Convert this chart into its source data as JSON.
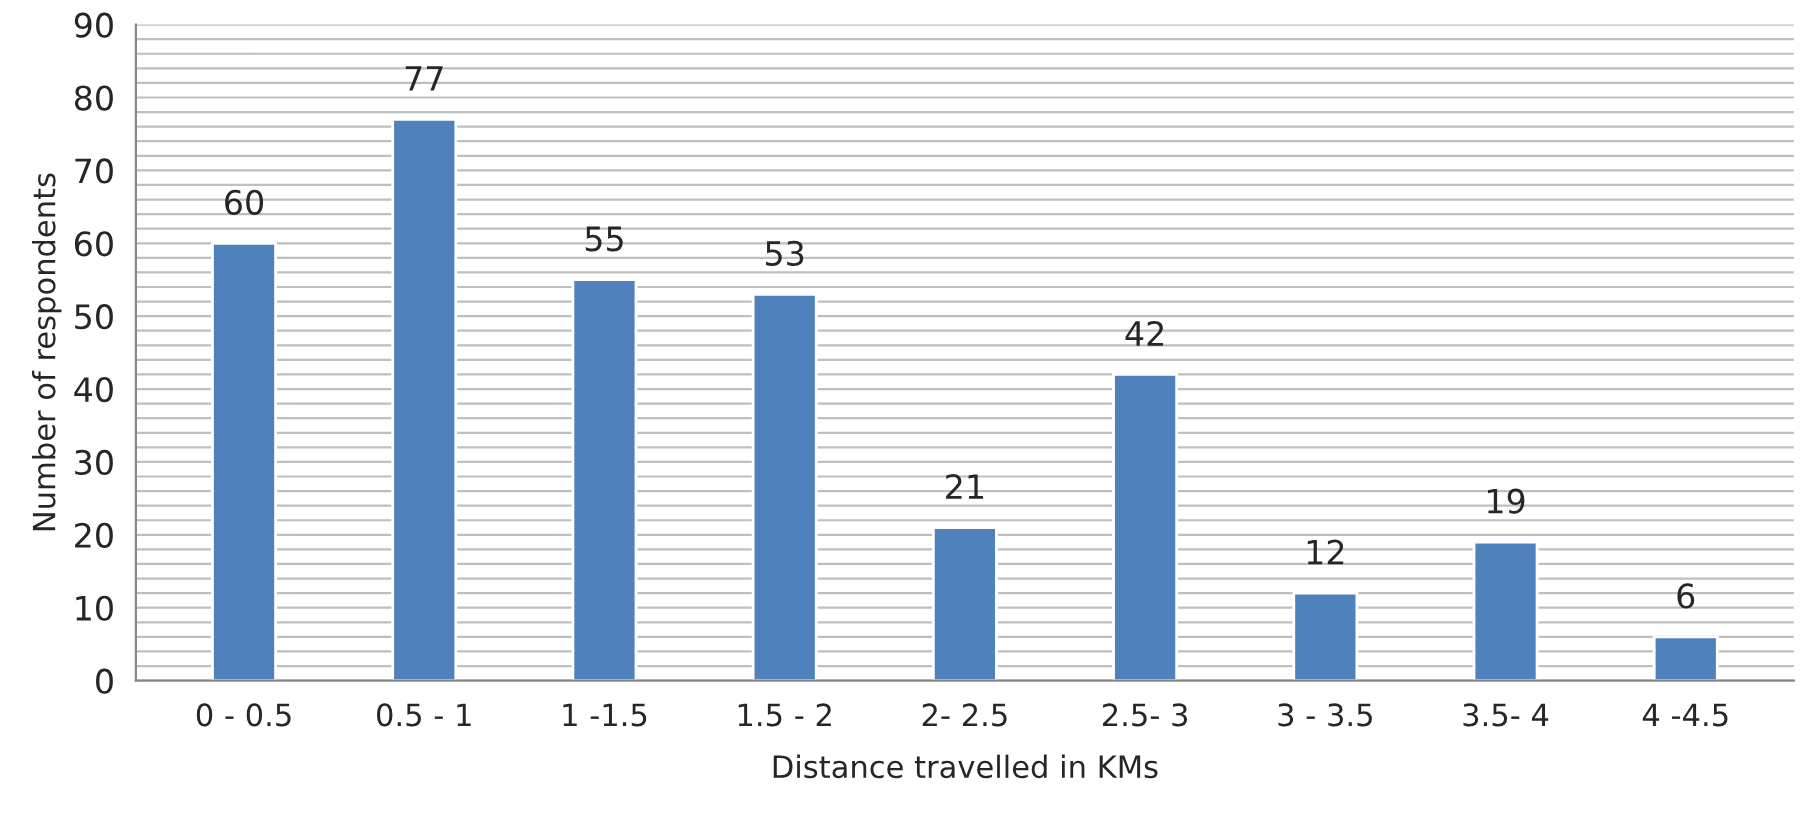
{
  "chart_data": {
    "type": "bar",
    "xlabel": "Distance travelled in KMs",
    "ylabel": "Number of respondents",
    "categories": [
      "0 - 0.5",
      "0.5 - 1",
      "1 -1.5",
      "1.5 - 2",
      "2- 2.5",
      "2.5- 3",
      "3 - 3.5",
      "3.5- 4",
      "4 -4.5"
    ],
    "values": [
      60,
      77,
      55,
      53,
      21,
      42,
      12,
      19,
      6
    ],
    "color": "#4f81bd",
    "data_labels": true,
    "grid": "y",
    "legend": false,
    "ylim": [
      0,
      90
    ],
    "yticks": [
      0,
      {
        "value": 2,
        "label": null
      },
      {
        "value": 4,
        "label": null
      },
      {
        "value": 6,
        "label": null
      },
      {
        "value": 8,
        "label": null
      },
      10,
      {
        "value": 12,
        "label": null
      },
      {
        "value": 14,
        "label": null
      },
      {
        "value": 16,
        "label": null
      },
      {
        "value": 18,
        "label": null
      },
      20,
      {
        "value": 22,
        "label": null
      },
      {
        "value": 24,
        "label": null
      },
      {
        "value": 26,
        "label": null
      },
      {
        "value": 28,
        "label": null
      },
      30,
      {
        "value": 32,
        "label": null
      },
      {
        "value": 34,
        "label": null
      },
      {
        "value": 36,
        "label": null
      },
      {
        "value": 38,
        "label": null
      },
      40,
      {
        "value": 42,
        "label": null
      },
      {
        "value": 44,
        "label": null
      },
      {
        "value": 46,
        "label": null
      },
      {
        "value": 48,
        "label": null
      },
      50,
      {
        "value": 52,
        "label": null
      },
      {
        "value": 54,
        "label": null
      },
      {
        "value": 56,
        "label": null
      },
      {
        "value": 58,
        "label": null
      },
      60,
      {
        "value": 62,
        "label": null
      },
      {
        "value": 64,
        "label": null
      },
      {
        "value": 66,
        "label": null
      },
      {
        "value": 68,
        "label": null
      },
      70,
      {
        "value": 72,
        "label": null
      },
      {
        "value": 74,
        "label": null
      },
      {
        "value": 76,
        "label": null
      },
      {
        "value": 78,
        "label": null
      },
      80,
      {
        "value": 82,
        "label": null
      },
      {
        "value": 84,
        "label": null
      },
      {
        "value": 86,
        "label": null
      },
      {
        "value": 88,
        "label": null
      },
      90
    ]
  }
}
